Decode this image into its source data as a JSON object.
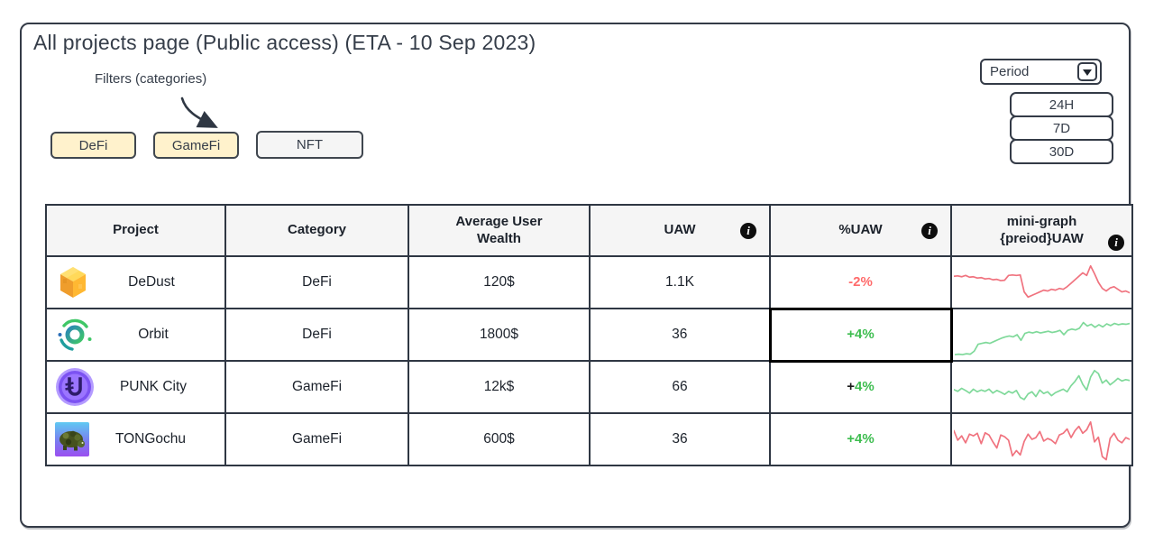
{
  "page": {
    "title": "All projects page (Public access) (ETA - 10 Sep 2023)"
  },
  "colors": {
    "frame_dark": "#343b47",
    "header_bg": "#f5f5f5",
    "chip_cream": "#fff2cc",
    "chip_gray": "#f5f5f5",
    "negative_red": "#ff6b6b",
    "positive_green": "#3dbd4f",
    "spark_red": "#f0737f",
    "spark_green": "#7fd99a"
  },
  "filters": {
    "label": "Filters (categories)",
    "buttons": [
      {
        "label": "DeFi"
      },
      {
        "label": "GameFi"
      },
      {
        "label": "NFT"
      }
    ]
  },
  "period": {
    "label": "Period",
    "options": [
      "24H",
      "7D",
      "30D"
    ]
  },
  "table": {
    "headers": {
      "project": "Project",
      "category": "Category",
      "avg_wealth": "Average User Wealth",
      "uaw": "UAW",
      "pct_uaw": "%UAW",
      "minigraph": "mini-graph {preiod}UAW",
      "info_glyph": "i"
    },
    "rows": [
      {
        "project": "DeDust",
        "icon": "dedust-logo-icon",
        "category": "DeFi",
        "avg_user_wealth": "120$",
        "uaw": "1.1K",
        "change_sign": "-",
        "change_value": "2%",
        "change_sign_color": "#ff6b6b",
        "change_value_color": "#ff6b6b",
        "highlight_change_cell": false,
        "spark_color": "#f0737f"
      },
      {
        "project": "Orbit",
        "icon": "orbit-logo-icon",
        "category": "DeFi",
        "avg_user_wealth": "1800$",
        "uaw": "36",
        "change_sign": "+",
        "change_value": "4%",
        "change_sign_color": "#3dbd4f",
        "change_value_color": "#3dbd4f",
        "highlight_change_cell": true,
        "spark_color": "#7fd99a"
      },
      {
        "project": "PUNK City",
        "icon": "punk-city-logo-icon",
        "category": "GameFi",
        "avg_user_wealth": "12k$",
        "uaw": "66",
        "change_sign": "+",
        "change_value": "4%",
        "change_sign_color": "#1a1a1a",
        "change_value_color": "#3dbd4f",
        "highlight_change_cell": false,
        "spark_color": "#7fd99a"
      },
      {
        "project": "TONGochu",
        "icon": "tongochu-logo-icon",
        "category": "GameFi",
        "avg_user_wealth": "600$",
        "uaw": "36",
        "change_sign": "+",
        "change_value": "4%",
        "change_sign_color": "#3dbd4f",
        "change_value_color": "#3dbd4f",
        "highlight_change_cell": false,
        "spark_color": "#f0737f"
      }
    ]
  },
  "chart_data": [
    {
      "type": "line",
      "name": "DeDust mini-graph UAW",
      "color": "#f0737f",
      "y_percent_from_top": [
        36,
        35,
        37,
        34,
        38,
        37,
        40,
        39,
        42,
        41,
        44,
        43,
        46,
        45,
        34,
        33,
        34,
        33,
        72,
        84,
        80,
        76,
        72,
        68,
        70,
        66,
        68,
        64,
        66,
        60,
        52,
        44,
        36,
        28,
        34,
        12,
        30,
        50,
        64,
        70,
        63,
        60,
        66,
        72,
        70,
        74
      ]
    },
    {
      "type": "line",
      "name": "Orbit mini-graph UAW",
      "color": "#7fd99a",
      "y_percent_from_top": [
        96,
        95,
        96,
        94,
        95,
        88,
        72,
        70,
        68,
        70,
        66,
        62,
        58,
        55,
        53,
        55,
        50,
        63,
        47,
        44,
        46,
        43,
        46,
        44,
        42,
        45,
        43,
        40,
        50,
        40,
        37,
        39,
        35,
        22,
        30,
        26,
        33,
        27,
        32,
        25,
        29,
        24,
        27,
        25,
        26,
        24
      ]
    },
    {
      "type": "line",
      "name": "PUNK City mini-graph UAW",
      "color": "#7fd99a",
      "y_percent_from_top": [
        56,
        60,
        53,
        58,
        64,
        55,
        61,
        57,
        60,
        55,
        64,
        58,
        62,
        67,
        60,
        64,
        58,
        74,
        79,
        66,
        61,
        72,
        57,
        65,
        61,
        70,
        63,
        59,
        55,
        61,
        47,
        37,
        24,
        44,
        57,
        27,
        12,
        19,
        41,
        34,
        45,
        38,
        30,
        36,
        33,
        35
      ]
    },
    {
      "type": "line",
      "name": "TONGochu mini-graph UAW",
      "color": "#f0737f",
      "y_percent_from_top": [
        30,
        52,
        42,
        58,
        38,
        42,
        36,
        60,
        35,
        40,
        56,
        70,
        40,
        44,
        52,
        88,
        76,
        86,
        55,
        38,
        50,
        46,
        32,
        54,
        48,
        52,
        60,
        40,
        36,
        26,
        46,
        30,
        20,
        36,
        28,
        10,
        56,
        45,
        90,
        97,
        48,
        36,
        52,
        58,
        46,
        50
      ]
    }
  ]
}
